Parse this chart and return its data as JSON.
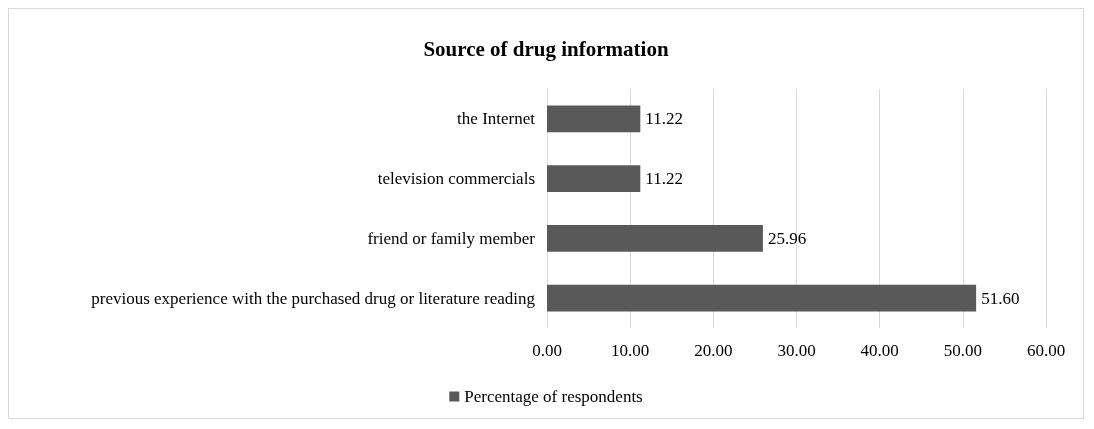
{
  "chart_data": {
    "type": "bar",
    "orientation": "horizontal",
    "title": "Source of drug information",
    "categories": [
      "the Internet",
      "television commercials",
      "friend or family member",
      "previous experience with the purchased drug or literature reading"
    ],
    "series": [
      {
        "name": "Percentage of respondents",
        "color": "#595959",
        "values": [
          11.22,
          11.22,
          25.96,
          51.6
        ],
        "value_labels": [
          "11.22",
          "11.22",
          "25.96",
          "51.60"
        ]
      }
    ],
    "xlim": [
      0,
      60
    ],
    "xticks": [
      {
        "value": 0,
        "label": "0.00"
      },
      {
        "value": 10,
        "label": "10.00"
      },
      {
        "value": 20,
        "label": "20.00"
      },
      {
        "value": 30,
        "label": "30.00"
      },
      {
        "value": 40,
        "label": "40.00"
      },
      {
        "value": 50,
        "label": "50.00"
      },
      {
        "value": 60,
        "label": "60.00"
      }
    ],
    "grid": "x",
    "legend": "bottom"
  }
}
